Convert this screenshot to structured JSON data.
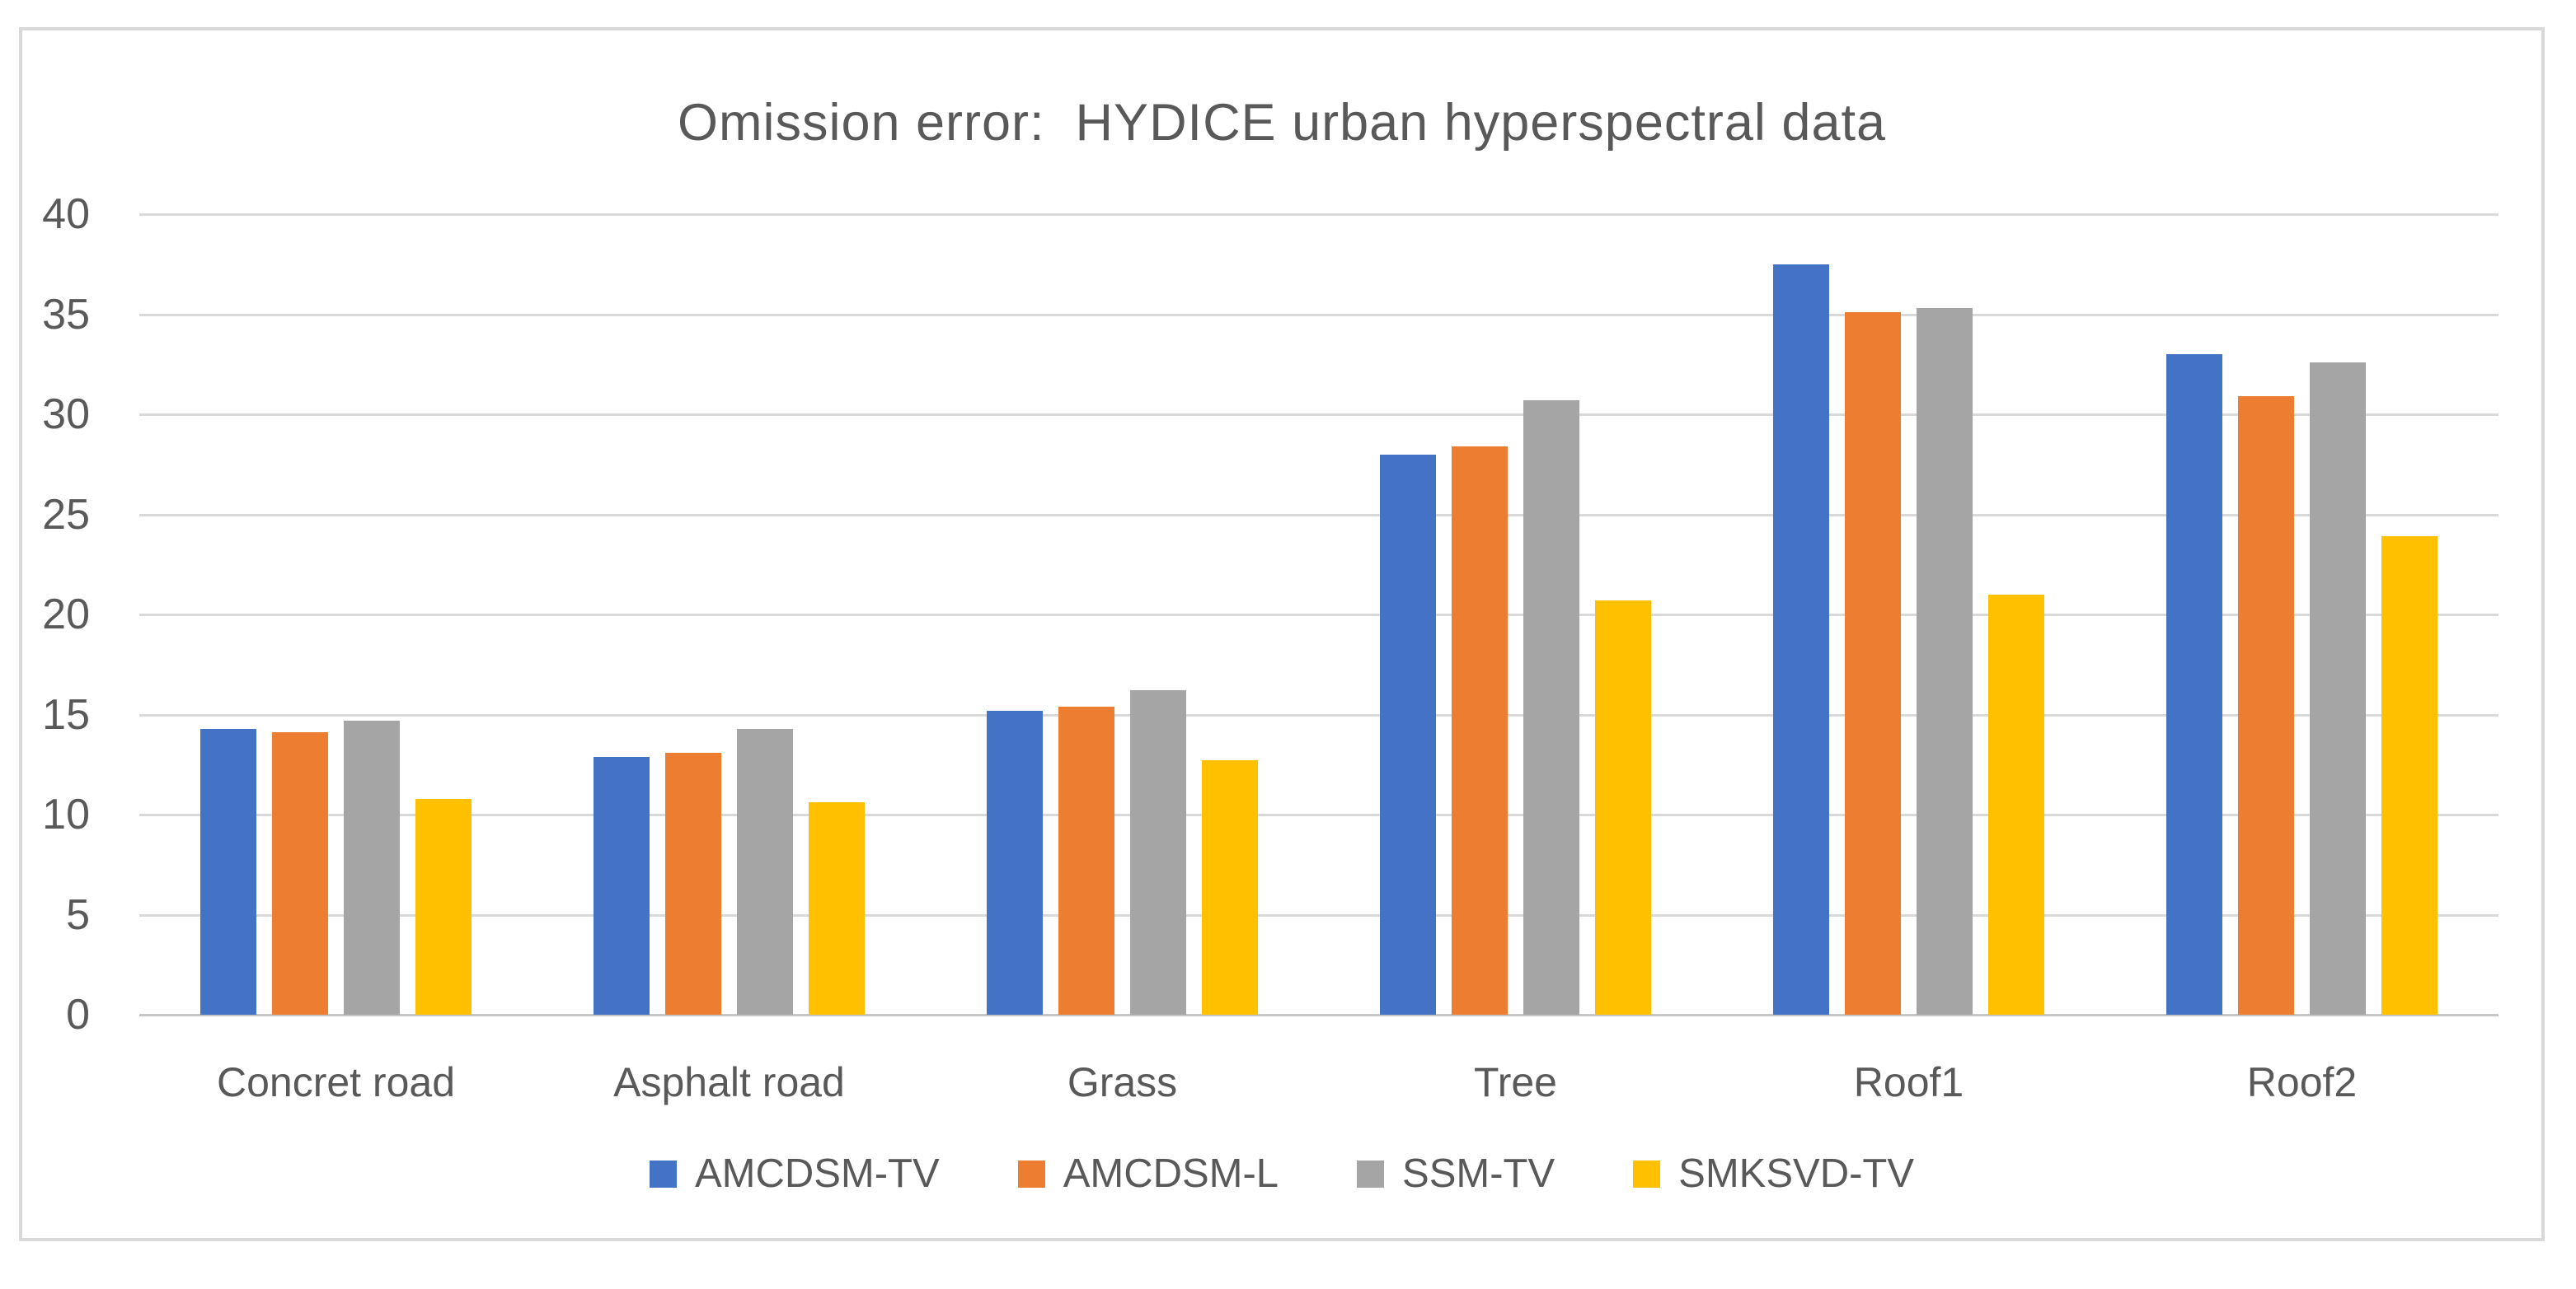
{
  "chart_data": {
    "type": "bar",
    "title": "Omission error:  HYDICE urban hyperspectral data",
    "categories": [
      "Concret road",
      "Asphalt road",
      "Grass",
      "Tree",
      "Roof1",
      "Roof2"
    ],
    "series": [
      {
        "name": "AMCDSM-TV",
        "color": "#4472C4",
        "values": [
          14.3,
          12.9,
          15.2,
          28.0,
          37.5,
          33.0
        ]
      },
      {
        "name": "AMCDSM-L",
        "color": "#ED7D31",
        "values": [
          14.1,
          13.1,
          15.4,
          28.4,
          35.1,
          30.9
        ]
      },
      {
        "name": "SSM-TV",
        "color": "#A5A5A5",
        "values": [
          14.7,
          14.3,
          16.2,
          30.7,
          35.3,
          32.6
        ]
      },
      {
        "name": "SMKSVD-TV",
        "color": "#FFC000",
        "values": [
          10.8,
          10.6,
          12.7,
          20.7,
          21.0,
          23.9
        ]
      }
    ],
    "xlabel": "",
    "ylabel": "",
    "ylim": [
      0,
      40
    ],
    "yticks": [
      0,
      5,
      10,
      15,
      20,
      25,
      30,
      35,
      40
    ],
    "grid": "horizontal",
    "legend_position": "bottom",
    "styles": {
      "text_color": "#595959",
      "gridline_color": "#D9D9D9",
      "axis_line_color": "#C6C6C6",
      "frame_border_color": "#D9D9D9",
      "background": "#FFFFFF"
    }
  }
}
